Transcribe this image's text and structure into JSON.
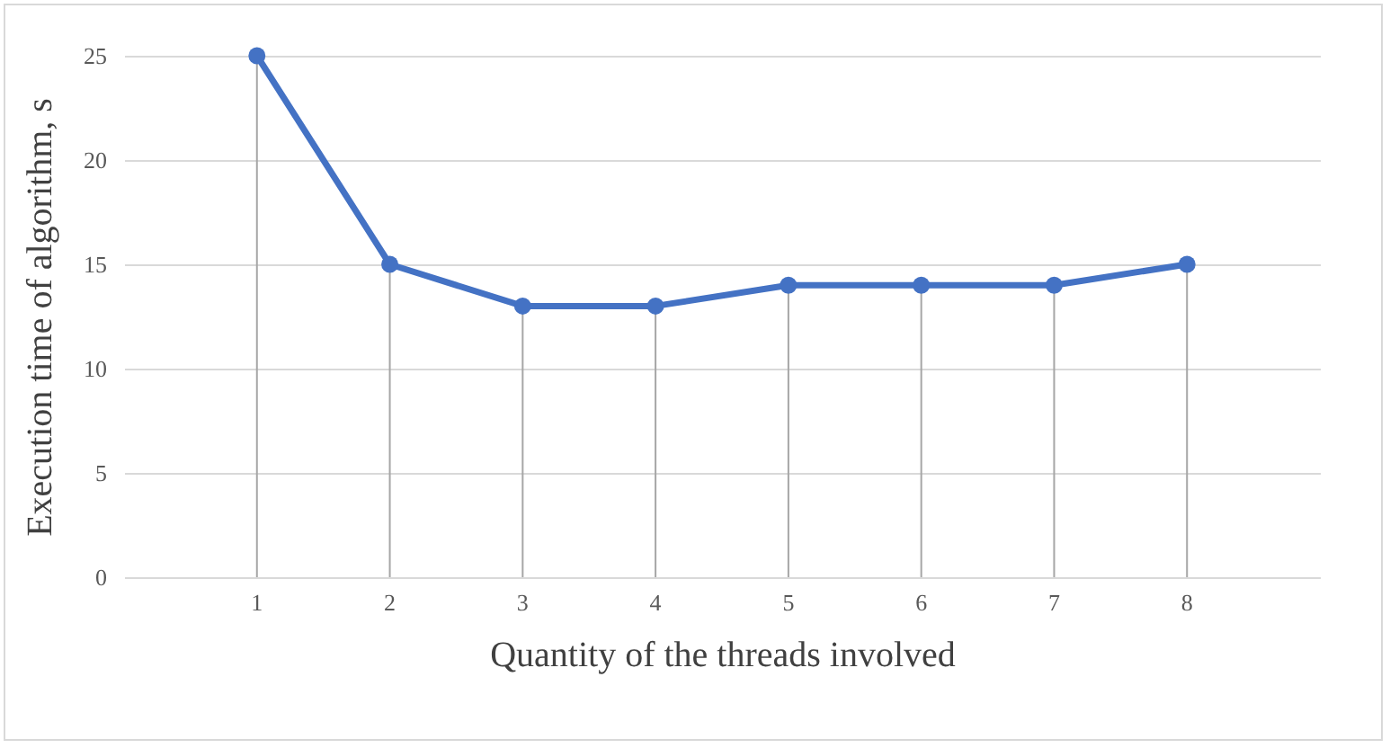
{
  "chart_data": {
    "type": "line",
    "xlabel": "Quantity of the threads involved",
    "ylabel": "Execution time of algorithm, s",
    "categories": [
      "1",
      "2",
      "3",
      "4",
      "5",
      "6",
      "7",
      "8"
    ],
    "series": [
      {
        "color": "#4472c4",
        "values": [
          25,
          15,
          13,
          13,
          14,
          14,
          14,
          15
        ]
      },
      {
        "type": "lollipop",
        "color": "#4472c4",
        "values": [
          25,
          15,
          13,
          13,
          14,
          14,
          14,
          15
        ]
      }
    ],
    "ylim": [
      0,
      25
    ],
    "yticks": [
      0,
      5,
      10,
      15,
      20,
      25
    ],
    "grid": "y",
    "line_style": "solid",
    "legend": false
  }
}
